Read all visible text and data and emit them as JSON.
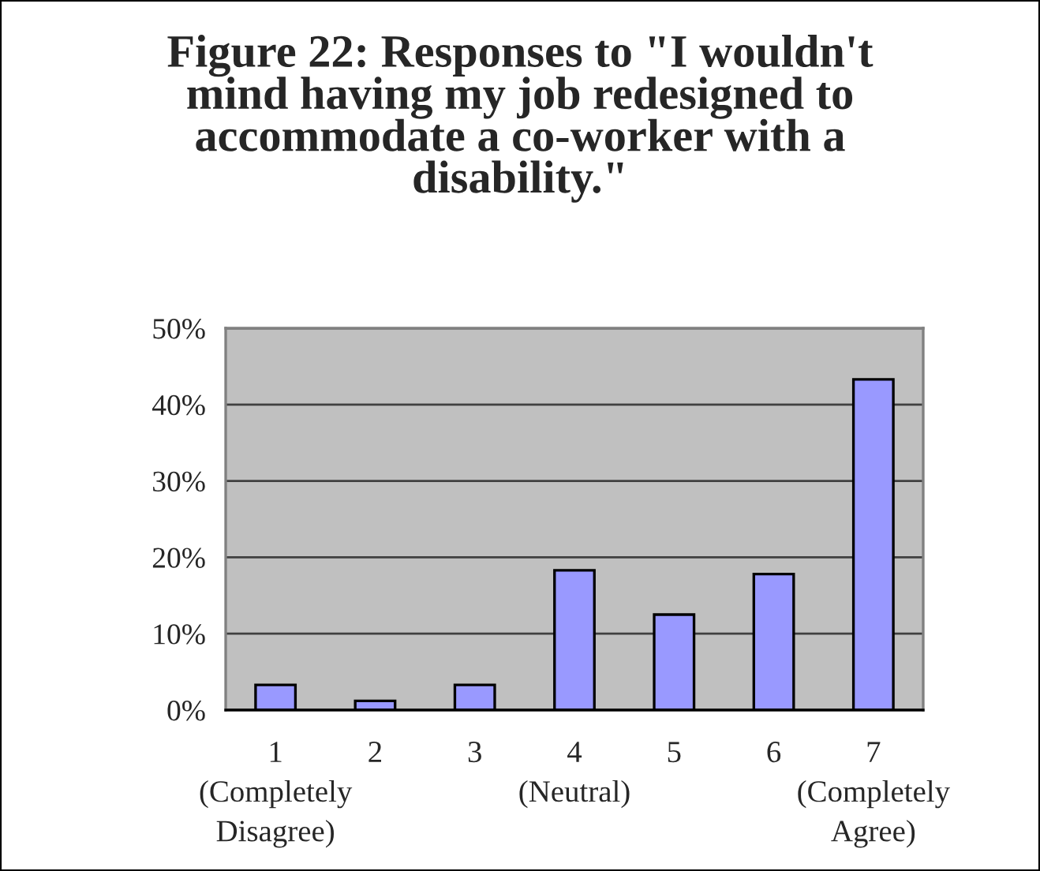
{
  "chart_data": {
    "type": "bar",
    "title": "Figure 22: Responses to \"I wouldn't\nmind having my job redesigned to\naccommodate a co-worker with a\ndisability.\"",
    "categories": [
      "1\n(Completely\nDisagree)",
      "2",
      "3",
      "4\n(Neutral)",
      "5",
      "6",
      "7\n(Completely\nAgree)"
    ],
    "values": [
      3.3,
      1.2,
      3.3,
      18.3,
      12.5,
      17.8,
      43.3
    ],
    "color": "#9999ff",
    "ylim": [
      0,
      50
    ],
    "yticks": [
      {
        "value": 0,
        "label": "0%"
      },
      {
        "value": 10,
        "label": "10%"
      },
      {
        "value": 20,
        "label": "20%"
      },
      {
        "value": 30,
        "label": "30%"
      },
      {
        "value": 40,
        "label": "40%"
      },
      {
        "value": 50,
        "label": "50%"
      }
    ],
    "grid": "y"
  }
}
